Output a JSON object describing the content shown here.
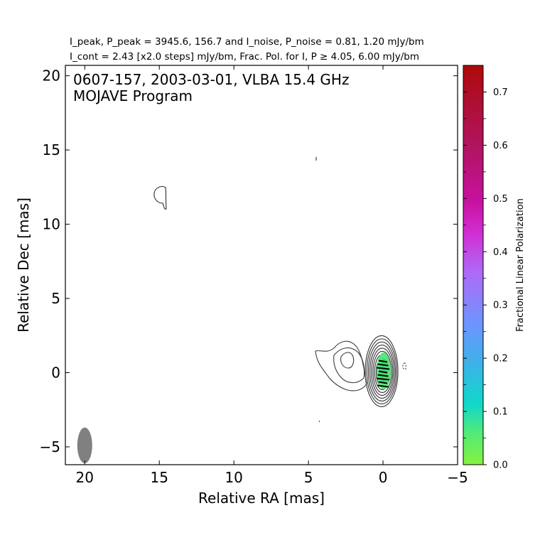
{
  "chart_data": {
    "type": "contour",
    "header_line1": "I_peak, P_peak = 3945.6, 156.7 and I_noise, P_noise = 0.81, 1.20 mJy/bm",
    "header_line2": "I_cont = 2.43 [x2.0 steps] mJy/bm, Frac. Pol. for I, P ≥ 4.05, 6.00 mJy/bm",
    "annotation_line1": "0607-157, 2003-03-01, VLBA 15.4 GHz",
    "annotation_line2": "MOJAVE Program",
    "xlabel": "Relative RA [mas]",
    "ylabel": "Relative Dec [mas]",
    "xlim": [
      21.3,
      -5.0
    ],
    "ylim": [
      -6.2,
      20.7
    ],
    "xticks": [
      20,
      15,
      10,
      5,
      0,
      -5
    ],
    "xtick_labels": [
      "20",
      "15",
      "10",
      "5",
      "0",
      "−5"
    ],
    "yticks": [
      -5,
      0,
      5,
      10,
      15,
      20
    ],
    "ytick_labels": [
      "−5",
      "0",
      "5",
      "10",
      "15",
      "20"
    ],
    "colorbar": {
      "label": "Fractional Linear Polarization",
      "range": [
        0.0,
        0.75
      ],
      "ticks": [
        0.0,
        0.1,
        0.2,
        0.3,
        0.4,
        0.5,
        0.6,
        0.7
      ],
      "tick_labels": [
        "0.0",
        "0.1",
        "0.2",
        "0.3",
        "0.4",
        "0.5",
        "0.6",
        "0.7"
      ]
    },
    "beam": {
      "x": 20.0,
      "y": -4.9,
      "major_mas": 1.2,
      "minor_mas": 0.5
    },
    "core": {
      "x": 0.0,
      "y": 0.0,
      "contour_count": 10
    },
    "jet_feature_x": 2.5,
    "fractional_polarization_core": 0.03,
    "colors": {
      "contour": "#333333",
      "beam": "#808080",
      "evpa": "#000000"
    }
  }
}
